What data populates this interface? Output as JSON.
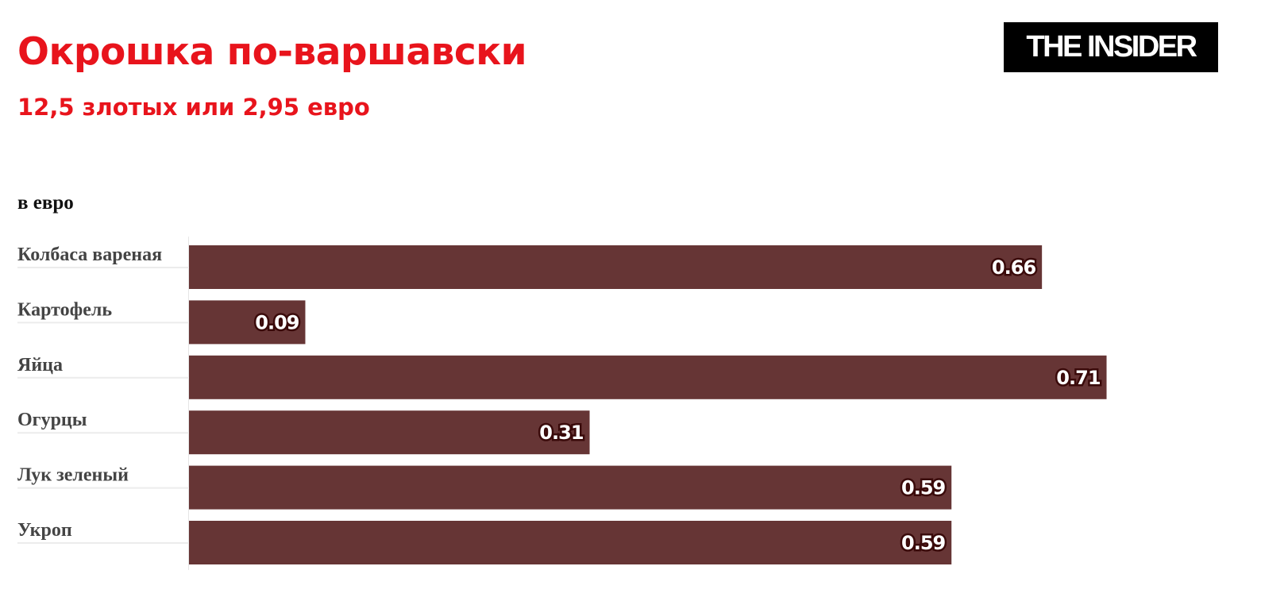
{
  "header": {
    "title": "Окрошка по-варшавски",
    "subtitle": "12,5 злотых или 2,95 евро",
    "logo": "THE INSIDER"
  },
  "chart_data": {
    "type": "bar",
    "orientation": "horizontal",
    "unit_label": "в евро",
    "categories": [
      "Колбаса вареная",
      "Картофель",
      "Яйца",
      "Огурцы",
      "Лук зеленый",
      "Укроп"
    ],
    "values": [
      0.66,
      0.09,
      0.71,
      0.31,
      0.59,
      0.59
    ],
    "data_labels": [
      "0.66",
      "0.09",
      "0.71",
      "0.31",
      "0.59",
      "0.59"
    ],
    "xlim": [
      0,
      0.8
    ],
    "grid": false,
    "bar_color": "#663535",
    "title_color": "#e8141c"
  }
}
